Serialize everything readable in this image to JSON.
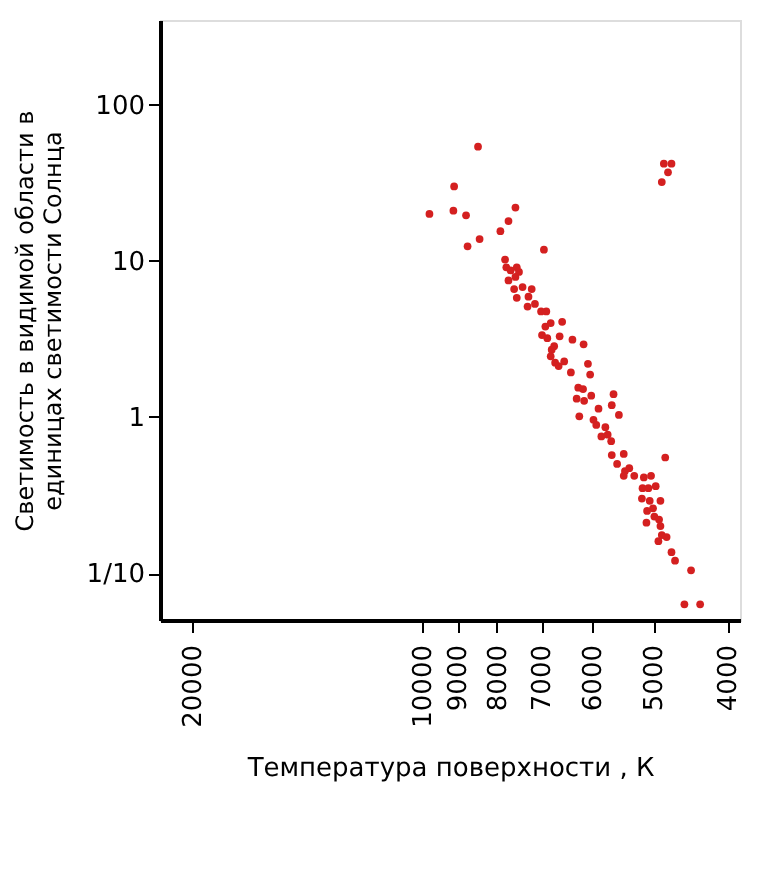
{
  "chart_data": {
    "type": "scatter",
    "xlabel": "Температура  поверхности , К",
    "ylabel": "Светимость  в  видимой  области  в\nединицах  светимости  Солнца",
    "log": "xy",
    "marker": "circle",
    "grid": false,
    "xlim": [
      22000,
      3850
    ],
    "xticks": [
      20000,
      10000,
      9000,
      8000,
      7000,
      6000,
      5000,
      4000
    ],
    "ylim": [
      0.05,
      350
    ],
    "yticks": [
      100,
      10,
      1,
      {
        "value": 0.1,
        "label": "1/10"
      }
    ],
    "series": [
      {
        "color": "#d42020",
        "x": [
          8460,
          9090,
          9790,
          9110,
          8770,
          7560,
          7720,
          7910,
          8420,
          8730,
          6940,
          7800,
          7770,
          7670,
          7530,
          7720,
          7560,
          7480,
          7590,
          7400,
          7200,
          7270,
          7530,
          7290,
          7130,
          7000,
          6890,
          6800,
          6910,
          6980,
          6870,
          6780,
          6730,
          6800,
          6710,
          6640,
          6570,
          6620,
          6370,
          6160,
          6530,
          6400,
          6080,
          6040,
          6260,
          6170,
          6290,
          6150,
          6240,
          6020,
          5980,
          5930,
          5890,
          5840,
          5770,
          5730,
          5670,
          5630,
          5660,
          5540,
          5460,
          5660,
          5570,
          5440,
          5460,
          5370,
          5290,
          5140,
          5030,
          5160,
          5070,
          4960,
          5170,
          5050,
          5000,
          4980,
          5100,
          5090,
          4890,
          4910,
          4890,
          4870,
          4920,
          4800,
          4820,
          4730,
          4680,
          4460,
          4550,
          4340,
          4870,
          4840,
          4780,
          4730
        ],
        "values": [
          54,
          30,
          20,
          21,
          19.6,
          22,
          18,
          15.5,
          13.8,
          12.4,
          11.8,
          10.2,
          9.1,
          8.7,
          9.1,
          7.5,
          7.9,
          8.5,
          6.6,
          6.8,
          6.6,
          5.9,
          5.8,
          5.1,
          5.3,
          4.75,
          4.75,
          4.0,
          3.8,
          3.35,
          3.2,
          2.7,
          2.84,
          2.45,
          2.23,
          2.12,
          4.07,
          3.29,
          3.13,
          2.92,
          2.27,
          1.93,
          2.19,
          1.87,
          1.54,
          1.51,
          1.31,
          1.27,
          1.01,
          1.37,
          0.96,
          0.89,
          1.13,
          0.75,
          0.86,
          0.77,
          0.7,
          1.4,
          1.19,
          1.03,
          0.58,
          0.57,
          0.5,
          0.45,
          0.42,
          0.47,
          0.42,
          0.41,
          0.42,
          0.35,
          0.35,
          0.36,
          0.3,
          0.29,
          0.26,
          0.23,
          0.21,
          0.25,
          0.29,
          0.22,
          0.2,
          0.175,
          0.16,
          0.17,
          0.55,
          0.136,
          0.12,
          0.104,
          0.063,
          0.063,
          32,
          42,
          37,
          42
        ]
      }
    ]
  }
}
